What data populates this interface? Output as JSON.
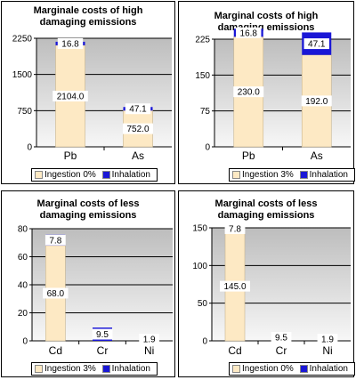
{
  "chart_data": [
    {
      "type": "bar",
      "title": "Marginale costs of high damaging emissions",
      "categories": [
        "Pb",
        "As"
      ],
      "series": [
        {
          "name": "Ingestion 0%",
          "values": [
            2104.0,
            752.0
          ],
          "labels": [
            "2104.0",
            "752.0"
          ]
        },
        {
          "name": "Inhalation",
          "values": [
            16.8,
            47.1
          ],
          "labels": [
            "16.8",
            "47.1"
          ]
        }
      ],
      "yticks": [
        "0",
        "750",
        "1500",
        "2250"
      ],
      "ylim": [
        0,
        2250
      ],
      "stacked": true,
      "grid": true,
      "legend": "bottom"
    },
    {
      "type": "bar",
      "title": "Marginal costs of high damaging emissions",
      "categories": [
        "Pb",
        "As"
      ],
      "series": [
        {
          "name": "Ingestion 3%",
          "values": [
            230.0,
            192.0
          ],
          "labels": [
            "230.0",
            "192.0"
          ]
        },
        {
          "name": "Inhalation",
          "values": [
            16.8,
            47.1
          ],
          "labels": [
            "16.8",
            "47.1"
          ]
        }
      ],
      "yticks": [
        "0",
        "75",
        "150",
        "225"
      ],
      "ylim": [
        0,
        225
      ],
      "stacked": true,
      "grid": true,
      "legend": "bottom"
    },
    {
      "type": "bar",
      "title": "Marginal costs of less damaging emissions",
      "categories": [
        "Cd",
        "Cr",
        "Ni"
      ],
      "series": [
        {
          "name": "Ingestion 3%",
          "values": [
            68.0,
            0,
            0
          ],
          "labels": [
            "68.0",
            "",
            ""
          ]
        },
        {
          "name": "Inhalation",
          "values": [
            7.8,
            9.5,
            1.9
          ],
          "labels": [
            "7.8",
            "9.5",
            "1.9"
          ]
        }
      ],
      "yticks": [
        "0",
        "20",
        "40",
        "60",
        "80"
      ],
      "ylim": [
        0,
        80
      ],
      "stacked": true,
      "grid": true,
      "legend": "bottom"
    },
    {
      "type": "bar",
      "title": "Marginal costs of less damaging emissions",
      "categories": [
        "Cd",
        "Cr",
        "Ni"
      ],
      "series": [
        {
          "name": "Ingestion 0%",
          "values": [
            145.0,
            0,
            0
          ],
          "labels": [
            "145.0",
            "",
            ""
          ]
        },
        {
          "name": "Inhalation",
          "values": [
            7.8,
            9.5,
            1.9
          ],
          "labels": [
            "7.8",
            "9.5",
            "1.9"
          ]
        }
      ],
      "yticks": [
        "0",
        "50",
        "100",
        "150"
      ],
      "ylim": [
        0,
        150
      ],
      "stacked": true,
      "grid": true,
      "legend": "bottom"
    }
  ],
  "colors": {
    "ingestion": "#fde9c4",
    "inhalation": "#1a17d6",
    "plot_top": "#bdbdbd",
    "plot_bottom": "#f7f7f7"
  }
}
